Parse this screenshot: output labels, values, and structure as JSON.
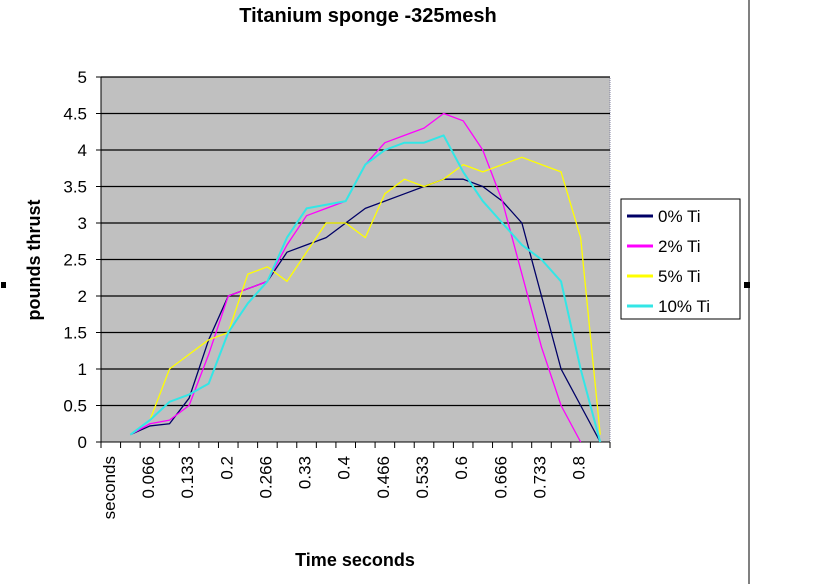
{
  "chart_data": {
    "type": "line",
    "title": "Titanium sponge  -325mesh",
    "xlabel": "Time seconds",
    "ylabel": "pounds thrust",
    "ylim": [
      0,
      5
    ],
    "ytick_step": 0.5,
    "yticks": [
      "0",
      "0.5",
      "1",
      "1.5",
      "2",
      "2.5",
      "3",
      "3.5",
      "4",
      "4.5",
      "5"
    ],
    "grid": true,
    "plot_background": "#c0c0c0",
    "legend_position": "right",
    "categories": [
      "seconds",
      "0.033",
      "0.066",
      "0.1",
      "0.133",
      "0.166",
      "0.2",
      "0.233",
      "0.266",
      "0.3",
      "0.33",
      "0.366",
      "0.4",
      "0.433",
      "0.466",
      "0.5",
      "0.533",
      "0.566",
      "0.6",
      "0.633",
      "0.666",
      "0.7",
      "0.733",
      "0.766",
      "0.8",
      "0.833"
    ],
    "xtick_labels": [
      "seconds",
      "",
      "0.066",
      "",
      "0.133",
      "",
      "0.2",
      "",
      "0.266",
      "",
      "0.33",
      "",
      "0.4",
      "",
      "0.466",
      "",
      "0.533",
      "",
      "0.6",
      "",
      "0.666",
      "",
      "0.733",
      "",
      "0.8",
      ""
    ],
    "series": [
      {
        "name": "0% Ti",
        "color": "#000066",
        "values": [
          null,
          0.1,
          0.22,
          0.25,
          0.6,
          1.4,
          2.0,
          2.1,
          2.2,
          2.6,
          2.7,
          2.8,
          3.0,
          3.2,
          3.3,
          3.4,
          3.5,
          3.6,
          3.6,
          3.5,
          3.3,
          3.0,
          2.0,
          1.0,
          0.5,
          0.0
        ]
      },
      {
        "name": "2% Ti",
        "color": "#ff00ff",
        "values": [
          null,
          0.1,
          0.25,
          0.3,
          0.5,
          1.2,
          2.0,
          2.1,
          2.2,
          2.7,
          3.1,
          3.2,
          3.3,
          3.8,
          4.1,
          4.2,
          4.3,
          4.5,
          4.4,
          4.0,
          3.3,
          2.3,
          1.3,
          0.5,
          0.0,
          null
        ]
      },
      {
        "name": "5% Ti",
        "color": "#ffff00",
        "values": [
          null,
          0.1,
          0.3,
          1.0,
          1.2,
          1.4,
          1.5,
          2.3,
          2.4,
          2.2,
          2.6,
          3.0,
          3.0,
          2.8,
          3.4,
          3.6,
          3.5,
          3.6,
          3.8,
          3.7,
          3.8,
          3.9,
          3.8,
          3.7,
          2.8,
          0.1
        ]
      },
      {
        "name": "10%  Ti",
        "color": "#33e6e6",
        "values": [
          null,
          0.1,
          0.3,
          0.55,
          0.65,
          0.8,
          1.5,
          1.9,
          2.2,
          2.8,
          3.2,
          3.25,
          3.3,
          3.8,
          4.0,
          4.1,
          4.1,
          4.2,
          3.7,
          3.3,
          3.0,
          2.7,
          2.5,
          2.2,
          1.0,
          0.0
        ]
      }
    ]
  }
}
